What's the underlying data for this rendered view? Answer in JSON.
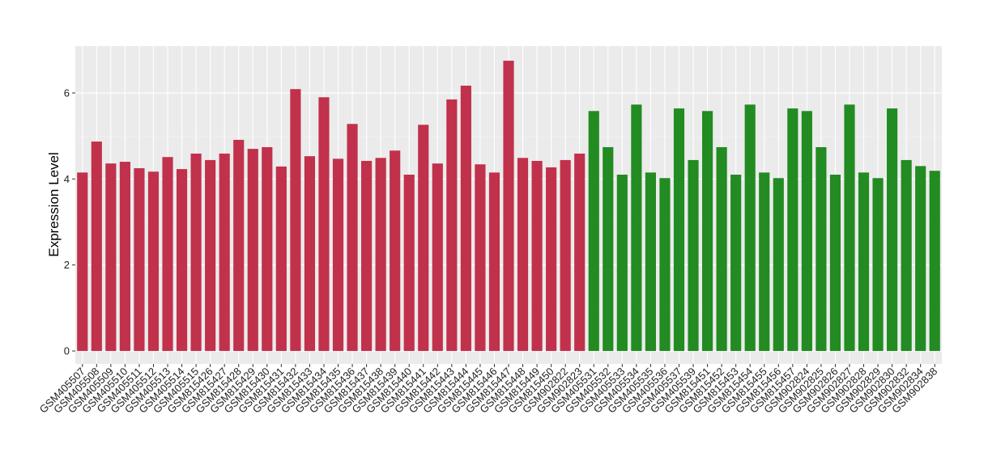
{
  "chart_data": {
    "type": "bar",
    "ylabel": "Expression Level",
    "categories": [
      "GSM405507",
      "GSM405508",
      "GSM405509",
      "GSM405510",
      "GSM405511",
      "GSM405512",
      "GSM405513",
      "GSM405514",
      "GSM405515",
      "GSM815426",
      "GSM815427",
      "GSM815428",
      "GSM815429",
      "GSM815430",
      "GSM815431",
      "GSM815432",
      "GSM815433",
      "GSM815434",
      "GSM815435",
      "GSM815436",
      "GSM815437",
      "GSM815438",
      "GSM815439",
      "GSM815440",
      "GSM815441",
      "GSM815442",
      "GSM815443",
      "GSM815444",
      "GSM815445",
      "GSM815446",
      "GSM815447",
      "GSM815448",
      "GSM815449",
      "GSM815450",
      "GSM902822",
      "GSM902823",
      "GSM405531",
      "GSM405532",
      "GSM405533",
      "GSM405534",
      "GSM405535",
      "GSM405536",
      "GSM405537",
      "GSM405539",
      "GSM815451",
      "GSM815452",
      "GSM815453",
      "GSM815454",
      "GSM815455",
      "GSM815456",
      "GSM815457",
      "GSM902824",
      "GSM902825",
      "GSM902826",
      "GSM902827",
      "GSM902828",
      "GSM902829",
      "GSM902830",
      "GSM902832",
      "GSM902834",
      "GSM902838"
    ],
    "values": [
      4.15,
      4.87,
      4.36,
      4.4,
      4.25,
      4.17,
      4.51,
      4.23,
      4.59,
      4.44,
      4.59,
      4.91,
      4.7,
      4.74,
      4.29,
      6.09,
      4.53,
      5.9,
      4.47,
      5.28,
      4.42,
      4.49,
      4.66,
      4.1,
      5.26,
      4.36,
      5.85,
      6.17,
      4.34,
      4.15,
      6.75,
      4.49,
      4.42,
      4.27,
      4.44,
      4.59,
      5.58,
      4.74,
      4.1,
      5.73,
      4.15,
      4.02,
      5.64,
      4.44,
      5.58,
      4.74,
      4.1,
      5.73,
      4.15,
      4.02,
      5.64,
      5.58,
      4.74,
      4.1,
      5.73,
      4.15,
      4.02,
      5.64,
      4.44,
      4.3,
      4.19
    ],
    "colors": [
      "#c1314b",
      "#c1314b",
      "#c1314b",
      "#c1314b",
      "#c1314b",
      "#c1314b",
      "#c1314b",
      "#c1314b",
      "#c1314b",
      "#c1314b",
      "#c1314b",
      "#c1314b",
      "#c1314b",
      "#c1314b",
      "#c1314b",
      "#c1314b",
      "#c1314b",
      "#c1314b",
      "#c1314b",
      "#c1314b",
      "#c1314b",
      "#c1314b",
      "#c1314b",
      "#c1314b",
      "#c1314b",
      "#c1314b",
      "#c1314b",
      "#c1314b",
      "#c1314b",
      "#c1314b",
      "#c1314b",
      "#c1314b",
      "#c1314b",
      "#c1314b",
      "#c1314b",
      "#c1314b",
      "#228b22",
      "#228b22",
      "#228b22",
      "#228b22",
      "#228b22",
      "#228b22",
      "#228b22",
      "#228b22",
      "#228b22",
      "#228b22",
      "#228b22",
      "#228b22",
      "#228b22",
      "#228b22",
      "#228b22",
      "#228b22",
      "#228b22",
      "#228b22",
      "#228b22",
      "#228b22",
      "#228b22",
      "#228b22",
      "#228b22",
      "#228b22",
      "#228b22"
    ],
    "ylim": [
      -0.3,
      7.09
    ],
    "yticks": [
      0,
      2,
      4,
      6
    ],
    "grid": true
  }
}
